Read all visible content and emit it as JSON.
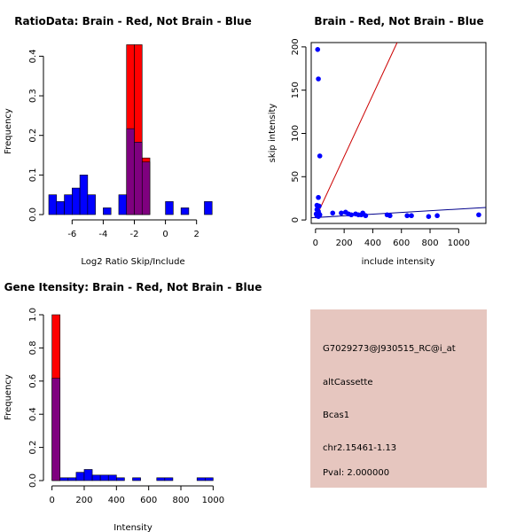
{
  "colors": {
    "brain": "#ff0000",
    "not_brain": "#0000ff",
    "overlap": "#7f007f",
    "info_bg": "#e6c6bf",
    "pval": "#cc0000",
    "fit_line_blue": "#00008b",
    "fit_line_red": "#cc0000"
  },
  "chart_data": [
    {
      "id": "ratio-hist",
      "type": "bar",
      "title": "RatioData: Brain - Red, Not Brain - Blue",
      "xlabel": "Log2 Ratio Skip/Include",
      "ylabel": "Frequency",
      "xlim": [
        -7.5,
        3.5
      ],
      "ylim": [
        0,
        0.43
      ],
      "xticks": [
        -6,
        -4,
        -2,
        0,
        2
      ],
      "xtick_labels": [
        "-6",
        "-4",
        "-2",
        "0",
        "2"
      ],
      "yticks": [
        0.0,
        0.1,
        0.2,
        0.3,
        0.4
      ],
      "ytick_labels": [
        "0.0",
        "0.1",
        "0.2",
        "0.3",
        "0.4"
      ],
      "bin_width": 0.5,
      "series": [
        {
          "name": "Not Brain",
          "color": "blue",
          "bins": [
            {
              "x0": -7.5,
              "v": 0.05
            },
            {
              "x0": -7.0,
              "v": 0.033
            },
            {
              "x0": -6.5,
              "v": 0.05
            },
            {
              "x0": -6.0,
              "v": 0.067
            },
            {
              "x0": -5.5,
              "v": 0.1
            },
            {
              "x0": -5.0,
              "v": 0.05
            },
            {
              "x0": -4.0,
              "v": 0.017
            },
            {
              "x0": -3.0,
              "v": 0.05
            },
            {
              "x0": -2.5,
              "v": 0.217
            },
            {
              "x0": -2.0,
              "v": 0.183
            },
            {
              "x0": -1.5,
              "v": 0.133
            },
            {
              "x0": 0.0,
              "v": 0.033
            },
            {
              "x0": 1.0,
              "v": 0.017
            },
            {
              "x0": 2.5,
              "v": 0.033
            }
          ]
        },
        {
          "name": "Brain",
          "color": "red",
          "bins": [
            {
              "x0": -2.5,
              "v": 0.429
            },
            {
              "x0": -2.0,
              "v": 0.429
            },
            {
              "x0": -1.5,
              "v": 0.143
            }
          ]
        }
      ]
    },
    {
      "id": "scatter",
      "type": "scatter",
      "title": "Brain - Red, Not Brain - Blue",
      "xlabel": "include intensity",
      "ylabel": "skip intensity",
      "xlim": [
        -30,
        1190
      ],
      "ylim": [
        -4,
        205
      ],
      "xticks": [
        0,
        200,
        400,
        600,
        800,
        1000
      ],
      "xtick_labels": [
        "0",
        "200",
        "400",
        "600",
        "800",
        "1000"
      ],
      "yticks": [
        0,
        50,
        100,
        150,
        200
      ],
      "ytick_labels": [
        "0",
        "50",
        "100",
        "150",
        "200"
      ],
      "points": [
        [
          15,
          197
        ],
        [
          20,
          163
        ],
        [
          30,
          74
        ],
        [
          20,
          26
        ],
        [
          10,
          17
        ],
        [
          15,
          16
        ],
        [
          25,
          16
        ],
        [
          10,
          12
        ],
        [
          20,
          10
        ],
        [
          15,
          8
        ],
        [
          5,
          7
        ],
        [
          25,
          7
        ],
        [
          10,
          5
        ],
        [
          20,
          4
        ],
        [
          30,
          6
        ],
        [
          120,
          8
        ],
        [
          180,
          8
        ],
        [
          210,
          9
        ],
        [
          230,
          7
        ],
        [
          250,
          6
        ],
        [
          280,
          7
        ],
        [
          300,
          6
        ],
        [
          320,
          6
        ],
        [
          330,
          8
        ],
        [
          350,
          5
        ],
        [
          500,
          6
        ],
        [
          520,
          5
        ],
        [
          640,
          5
        ],
        [
          670,
          5
        ],
        [
          790,
          4
        ],
        [
          850,
          5
        ],
        [
          1140,
          6
        ]
      ],
      "lines": [
        {
          "name": "red-fit",
          "color": "red",
          "from": [
            0,
            2
          ],
          "to": [
            570,
            205
          ]
        },
        {
          "name": "blue-fit",
          "color": "blue",
          "from": [
            -30,
            2.5
          ],
          "to": [
            1190,
            14.5
          ]
        }
      ]
    },
    {
      "id": "intensity-hist",
      "type": "bar",
      "title": "Gene Itensity: Brain - Red, Not Brain - Blue",
      "xlabel": "Intensity",
      "ylabel": "Frequency",
      "xlim": [
        -20,
        1020
      ],
      "ylim": [
        0,
        1.0
      ],
      "xticks": [
        0,
        200,
        400,
        600,
        800,
        1000
      ],
      "xtick_labels": [
        "0",
        "200",
        "400",
        "600",
        "800",
        "1000"
      ],
      "yticks": [
        0.0,
        0.2,
        0.4,
        0.6,
        0.8,
        1.0
      ],
      "ytick_labels": [
        "0.0",
        "0.2",
        "0.4",
        "0.6",
        "0.8",
        "1.0"
      ],
      "bin_width": 50,
      "series": [
        {
          "name": "Not Brain",
          "color": "blue",
          "bins": [
            {
              "x0": 0,
              "v": 0.617
            },
            {
              "x0": 50,
              "v": 0.017
            },
            {
              "x0": 100,
              "v": 0.017
            },
            {
              "x0": 150,
              "v": 0.05
            },
            {
              "x0": 200,
              "v": 0.067
            },
            {
              "x0": 250,
              "v": 0.033
            },
            {
              "x0": 300,
              "v": 0.033
            },
            {
              "x0": 350,
              "v": 0.033
            },
            {
              "x0": 400,
              "v": 0.017
            },
            {
              "x0": 500,
              "v": 0.017
            },
            {
              "x0": 650,
              "v": 0.017
            },
            {
              "x0": 700,
              "v": 0.017
            },
            {
              "x0": 900,
              "v": 0.017
            },
            {
              "x0": 950,
              "v": 0.017
            }
          ]
        },
        {
          "name": "Brain",
          "color": "red",
          "bins": [
            {
              "x0": 0,
              "v": 1.0
            }
          ]
        }
      ]
    }
  ],
  "info": {
    "probe": "G7029273@J930515_RC@i_at",
    "event_type": "altCassette",
    "gene": "Bcas1",
    "location": "chr2.15461-1.13",
    "pval": "Pval: 2.000000"
  }
}
